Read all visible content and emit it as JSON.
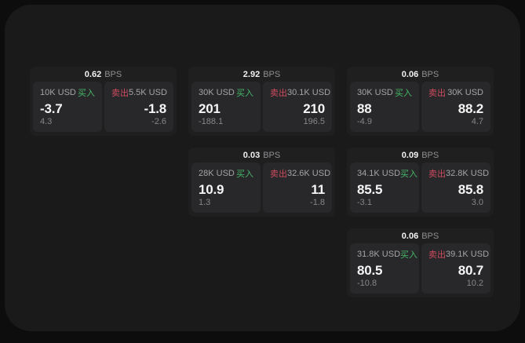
{
  "labels": {
    "bps_unit": "BPS",
    "buy": "买入",
    "sell": "卖出"
  },
  "colors": {
    "buy_accent": "#46b768",
    "sell_accent": "#cf4b5e",
    "panel_bg": "#1a1a1b",
    "card_bg": "#1f1f20",
    "tile_bg": "#28282a"
  },
  "cards": [
    {
      "bps": "0.62",
      "buy": {
        "size": "10K USD",
        "price": "-3.7",
        "delta": "4.3"
      },
      "sell": {
        "size": "5.5K USD",
        "price": "-1.8",
        "delta": "-2.6"
      }
    },
    {
      "bps": "2.92",
      "buy": {
        "size": "30K USD",
        "price": "201",
        "delta": "-188.1"
      },
      "sell": {
        "size": "30.1K USD",
        "price": "210",
        "delta": "196.5"
      }
    },
    {
      "bps": "0.06",
      "buy": {
        "size": "30K USD",
        "price": "88",
        "delta": "-4.9"
      },
      "sell": {
        "size": "30K USD",
        "price": "88.2",
        "delta": "4.7"
      }
    },
    {
      "bps": "0.03",
      "buy": {
        "size": "28K USD",
        "price": "10.9",
        "delta": "1.3"
      },
      "sell": {
        "size": "32.6K USD",
        "price": "11",
        "delta": "-1.8"
      }
    },
    {
      "bps": "0.09",
      "buy": {
        "size": "34.1K USD",
        "price": "85.5",
        "delta": "-3.1"
      },
      "sell": {
        "size": "32.8K USD",
        "price": "85.8",
        "delta": "3.0"
      }
    },
    {
      "bps": "0.06",
      "buy": {
        "size": "31.8K USD",
        "price": "80.5",
        "delta": "-10.8"
      },
      "sell": {
        "size": "39.1K USD",
        "price": "80.7",
        "delta": "10.2"
      }
    }
  ]
}
